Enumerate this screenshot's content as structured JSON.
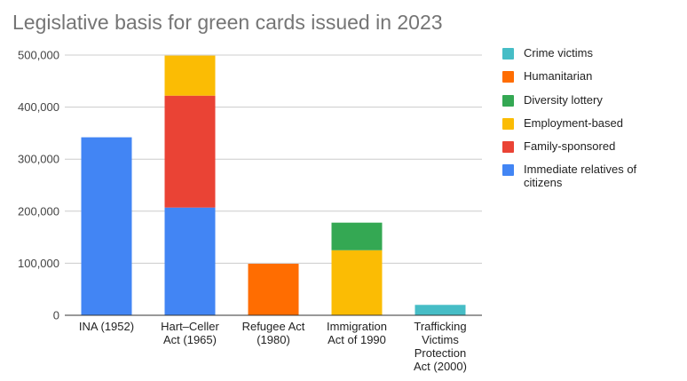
{
  "chart_data": {
    "type": "bar",
    "stacked": true,
    "title": "Legislative basis for green cards issued in 2023",
    "xlabel": "",
    "ylabel": "",
    "ylim": [
      0,
      500000
    ],
    "yticks": [
      0,
      100000,
      200000,
      300000,
      400000,
      500000
    ],
    "ytick_labels": [
      "0",
      "100,000",
      "200,000",
      "300,000",
      "400,000",
      "500,000"
    ],
    "grid": true,
    "legend_position": "right",
    "categories": [
      [
        "INA (1952)"
      ],
      [
        "Hart–Celler",
        "Act (1965)"
      ],
      [
        "Refugee Act",
        "(1980)"
      ],
      [
        "Immigration",
        "Act of 1990"
      ],
      [
        "Trafficking",
        "Victims",
        "Protection",
        "Act (2000)"
      ]
    ],
    "series": [
      {
        "name": "Immediate relatives of citizens",
        "color": "#4285f4",
        "values": [
          342000,
          207000,
          0,
          0,
          0
        ]
      },
      {
        "name": "Family-sponsored",
        "color": "#ea4335",
        "values": [
          0,
          215000,
          0,
          0,
          0
        ]
      },
      {
        "name": "Employment-based",
        "color": "#fbbc04",
        "values": [
          0,
          77000,
          0,
          125000,
          0
        ]
      },
      {
        "name": "Diversity lottery",
        "color": "#34a853",
        "values": [
          0,
          0,
          0,
          53000,
          0
        ]
      },
      {
        "name": "Humanitarian",
        "color": "#ff6d01",
        "values": [
          0,
          0,
          99000,
          0,
          0
        ]
      },
      {
        "name": "Crime victims",
        "color": "#46bdc6",
        "values": [
          0,
          0,
          0,
          0,
          20000
        ]
      }
    ],
    "legend_order": [
      "Crime victims",
      "Humanitarian",
      "Diversity lottery",
      "Employment-based",
      "Family-sponsored",
      "Immediate relatives of citizens"
    ]
  }
}
